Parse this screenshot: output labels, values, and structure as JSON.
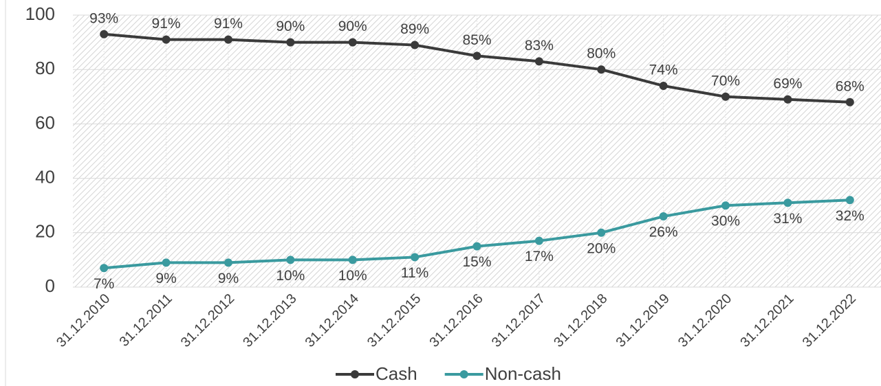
{
  "chart_data": {
    "type": "line",
    "categories": [
      "31.12.2010",
      "31.12.2011",
      "31.12.2012",
      "31.12.2013",
      "31.12.2014",
      "31.12.2015",
      "31.12.2016",
      "31.12.2017",
      "31.12.2018",
      "31.12.2019",
      "31.12.2020",
      "31.12.2021",
      "31.12.2022"
    ],
    "series": [
      {
        "name": "Cash",
        "color": "#3a3a3a",
        "values": [
          93,
          91,
          91,
          90,
          90,
          89,
          85,
          83,
          80,
          74,
          70,
          69,
          68
        ],
        "value_labels": [
          "93%",
          "91%",
          "91%",
          "90%",
          "90%",
          "89%",
          "85%",
          "83%",
          "80%",
          "74%",
          "70%",
          "69%",
          "68%"
        ]
      },
      {
        "name": "Non-cash",
        "color": "#3a9a9f",
        "values": [
          7,
          9,
          9,
          10,
          10,
          11,
          15,
          17,
          20,
          26,
          30,
          31,
          32
        ],
        "value_labels": [
          "7%",
          "9%",
          "9%",
          "10%",
          "10%",
          "11%",
          "15%",
          "17%",
          "20%",
          "26%",
          "30%",
          "31%",
          "32%"
        ]
      }
    ],
    "ylim": [
      0,
      100
    ],
    "yticks": [
      0,
      20,
      40,
      60,
      80,
      100
    ],
    "grid": true,
    "legend": "bottom"
  }
}
